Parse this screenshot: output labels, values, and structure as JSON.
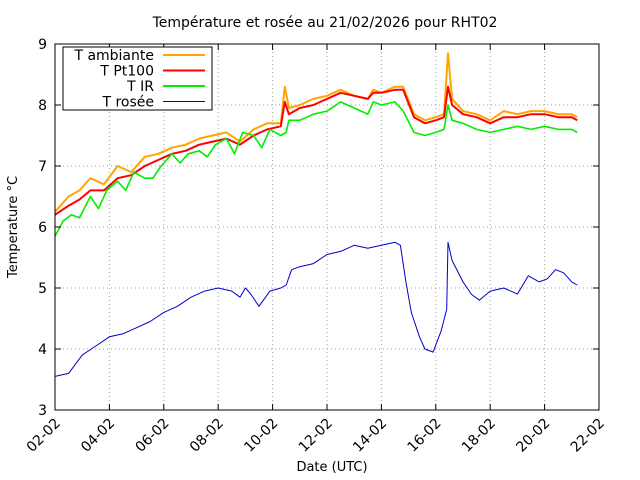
{
  "chart_data": {
    "type": "line",
    "title": "Température et rosée au 21/02/2026 pour RHT02",
    "xlabel": "Date (UTC)",
    "ylabel": "Temperature °C",
    "xlim": [
      2,
      22
    ],
    "ylim": [
      3,
      9
    ],
    "xticks": [
      {
        "value": 2,
        "label": "02-02"
      },
      {
        "value": 4,
        "label": "04-02"
      },
      {
        "value": 6,
        "label": "06-02"
      },
      {
        "value": 8,
        "label": "08-02"
      },
      {
        "value": 10,
        "label": "10-02"
      },
      {
        "value": 12,
        "label": "12-02"
      },
      {
        "value": 14,
        "label": "14-02"
      },
      {
        "value": 16,
        "label": "16-02"
      },
      {
        "value": 18,
        "label": "18-02"
      },
      {
        "value": 20,
        "label": "20-02"
      },
      {
        "value": 22,
        "label": "22-02"
      }
    ],
    "yticks": [
      3,
      4,
      5,
      6,
      7,
      8,
      9
    ],
    "grid": true,
    "legend": "top-left",
    "series": [
      {
        "name": "T ambiante",
        "color": "#ffa500",
        "x": [
          2.0,
          2.5,
          2.9,
          3.3,
          3.8,
          4.3,
          4.8,
          5.3,
          5.8,
          6.3,
          6.8,
          7.3,
          7.8,
          8.3,
          8.8,
          9.3,
          9.8,
          10.3,
          10.45,
          10.6,
          11.0,
          11.5,
          12.0,
          12.5,
          13.0,
          13.5,
          13.7,
          14.0,
          14.5,
          14.8,
          15.2,
          15.6,
          16.0,
          16.3,
          16.45,
          16.6,
          17.0,
          17.5,
          18.0,
          18.5,
          19.0,
          19.5,
          20.0,
          20.5,
          21.0,
          21.2
        ],
        "y": [
          6.25,
          6.5,
          6.6,
          6.8,
          6.7,
          7.0,
          6.9,
          7.15,
          7.2,
          7.3,
          7.35,
          7.45,
          7.5,
          7.55,
          7.4,
          7.6,
          7.7,
          7.7,
          8.3,
          7.95,
          8.0,
          8.1,
          8.15,
          8.25,
          8.15,
          8.1,
          8.25,
          8.2,
          8.3,
          8.3,
          7.85,
          7.75,
          7.8,
          7.85,
          8.85,
          8.1,
          7.9,
          7.85,
          7.75,
          7.9,
          7.85,
          7.9,
          7.9,
          7.85,
          7.85,
          7.8
        ]
      },
      {
        "name": "T Pt100",
        "color": "#ff0000",
        "x": [
          2.0,
          2.5,
          2.9,
          3.3,
          3.8,
          4.3,
          4.8,
          5.3,
          5.8,
          6.3,
          6.8,
          7.3,
          7.8,
          8.3,
          8.8,
          9.3,
          9.8,
          10.3,
          10.45,
          10.6,
          11.0,
          11.5,
          12.0,
          12.5,
          13.0,
          13.5,
          13.7,
          14.0,
          14.5,
          14.8,
          15.2,
          15.6,
          16.0,
          16.3,
          16.45,
          16.6,
          17.0,
          17.5,
          18.0,
          18.5,
          19.0,
          19.5,
          20.0,
          20.5,
          21.0,
          21.2
        ],
        "y": [
          6.2,
          6.35,
          6.45,
          6.6,
          6.6,
          6.8,
          6.85,
          7.0,
          7.1,
          7.2,
          7.25,
          7.35,
          7.4,
          7.45,
          7.35,
          7.5,
          7.6,
          7.65,
          8.05,
          7.85,
          7.95,
          8.0,
          8.1,
          8.2,
          8.15,
          8.1,
          8.2,
          8.2,
          8.25,
          8.25,
          7.8,
          7.7,
          7.75,
          7.8,
          8.3,
          8.0,
          7.85,
          7.8,
          7.7,
          7.8,
          7.8,
          7.85,
          7.85,
          7.8,
          7.8,
          7.75
        ]
      },
      {
        "name": "T IR",
        "color": "#00ee00",
        "x": [
          2.0,
          2.3,
          2.6,
          2.9,
          3.3,
          3.6,
          3.9,
          4.3,
          4.6,
          4.9,
          5.3,
          5.6,
          5.9,
          6.3,
          6.6,
          6.9,
          7.3,
          7.6,
          7.9,
          8.3,
          8.6,
          8.9,
          9.3,
          9.6,
          9.9,
          10.3,
          10.5,
          10.6,
          11.0,
          11.5,
          12.0,
          12.5,
          13.0,
          13.5,
          13.7,
          14.0,
          14.5,
          14.8,
          15.2,
          15.6,
          16.0,
          16.3,
          16.45,
          16.6,
          17.0,
          17.5,
          18.0,
          18.5,
          19.0,
          19.5,
          20.0,
          20.5,
          21.0,
          21.2
        ],
        "y": [
          5.85,
          6.1,
          6.2,
          6.15,
          6.5,
          6.3,
          6.6,
          6.75,
          6.6,
          6.9,
          6.8,
          6.8,
          7.0,
          7.2,
          7.05,
          7.2,
          7.25,
          7.15,
          7.35,
          7.45,
          7.2,
          7.55,
          7.5,
          7.3,
          7.6,
          7.5,
          7.55,
          7.75,
          7.75,
          7.85,
          7.9,
          8.05,
          7.95,
          7.85,
          8.05,
          8.0,
          8.05,
          7.9,
          7.55,
          7.5,
          7.55,
          7.6,
          8.0,
          7.75,
          7.7,
          7.6,
          7.55,
          7.6,
          7.65,
          7.6,
          7.65,
          7.6,
          7.6,
          7.55
        ]
      },
      {
        "name": "T rosée",
        "color": "#0000cc",
        "x": [
          2.0,
          2.5,
          3.0,
          3.5,
          4.0,
          4.5,
          5.0,
          5.5,
          6.0,
          6.5,
          7.0,
          7.5,
          8.0,
          8.5,
          8.8,
          9.0,
          9.2,
          9.5,
          9.9,
          10.3,
          10.5,
          10.7,
          11.0,
          11.5,
          12.0,
          12.5,
          13.0,
          13.5,
          14.0,
          14.5,
          14.7,
          14.9,
          15.1,
          15.4,
          15.6,
          15.9,
          16.2,
          16.4,
          16.45,
          16.6,
          17.0,
          17.3,
          17.6,
          18.0,
          18.5,
          19.0,
          19.4,
          19.8,
          20.1,
          20.4,
          20.7,
          21.0,
          21.2
        ],
        "y": [
          3.55,
          3.6,
          3.9,
          4.05,
          4.2,
          4.25,
          4.35,
          4.45,
          4.6,
          4.7,
          4.85,
          4.95,
          5.0,
          4.95,
          4.85,
          5.0,
          4.9,
          4.7,
          4.95,
          5.0,
          5.05,
          5.3,
          5.35,
          5.4,
          5.55,
          5.6,
          5.7,
          5.65,
          5.7,
          5.75,
          5.7,
          5.1,
          4.6,
          4.2,
          4.0,
          3.95,
          4.3,
          4.65,
          5.75,
          5.45,
          5.1,
          4.9,
          4.8,
          4.95,
          5.0,
          4.9,
          5.2,
          5.1,
          5.15,
          5.3,
          5.25,
          5.1,
          5.05
        ]
      }
    ]
  }
}
